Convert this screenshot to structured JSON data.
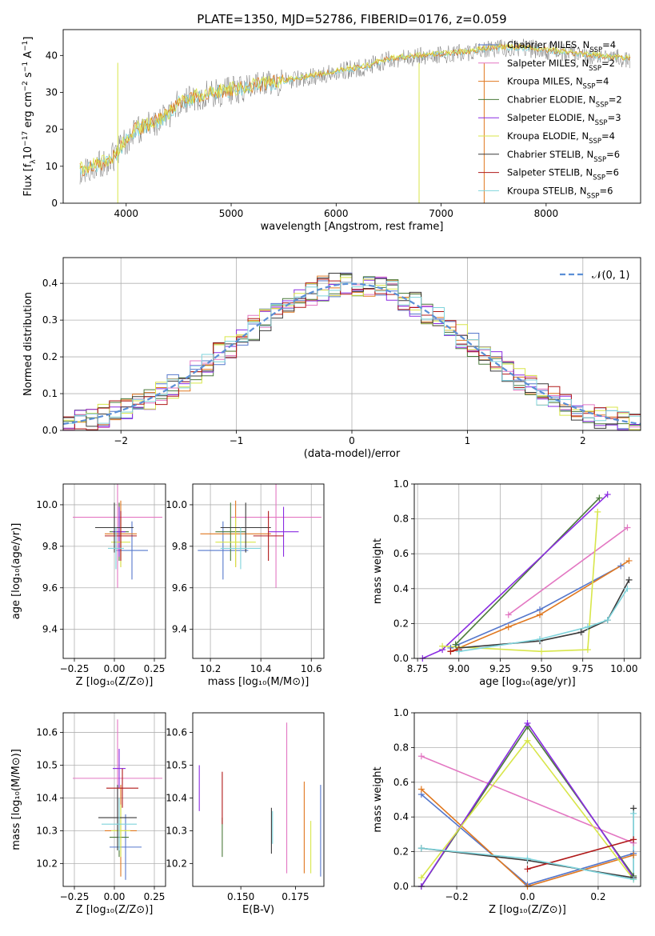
{
  "figure_title": "PLATE=1350, MJD=52786, FIBERID=0176, z=0.059",
  "colors": {
    "chabrier_miles": "#5577cc",
    "salpeter_miles": "#e377c2",
    "kroupa_miles": "#e07820",
    "chabrier_elodie": "#4a7a3a",
    "salpeter_elodie": "#8a2be2",
    "kroupa_elodie": "#d8e64a",
    "chabrier_stelib": "#3a3a3a",
    "salpeter_stelib": "#b01818",
    "kroupa_stelib": "#7fd4dc",
    "normal": "#5b8fd6"
  },
  "chart_data": [
    {
      "id": "spectrum",
      "type": "line",
      "title": "PLATE=1350, MJD=52786, FIBERID=0176, z=0.059",
      "xlabel": "wavelength [Angstrom, rest frame]",
      "ylabel_parts": [
        "Flux [f",
        "λ",
        "10",
        "−17",
        " erg cm",
        "−2",
        " s",
        "−1",
        " A",
        "−1",
        "]"
      ],
      "xlim": [
        3400,
        8900
      ],
      "ylim": [
        0,
        47
      ],
      "xticks": [
        4000,
        5000,
        6000,
        7000,
        8000
      ],
      "yticks": [
        0,
        10,
        20,
        30,
        40
      ],
      "grid": false,
      "legend": "right",
      "continuum_x": [
        3560,
        3700,
        3800,
        3900,
        4000,
        4100,
        4200,
        4300,
        4400,
        4500,
        4700,
        4900,
        5100,
        5300,
        5500,
        5700,
        5900,
        6100,
        6300,
        6500,
        6700,
        6900,
        7100,
        7300,
        7500,
        7800,
        8100,
        8400,
        8800
      ],
      "continuum_y": [
        9,
        10,
        11,
        13,
        17,
        20,
        21,
        22,
        24,
        27,
        29,
        30,
        31,
        32,
        33,
        34,
        35,
        36,
        37,
        39,
        39.5,
        40,
        40.5,
        41,
        42,
        42,
        41,
        40,
        39
      ],
      "series": [
        {
          "name": "Chabrier MILES, N",
          "sub": "SSP",
          "suffix": "=4",
          "color_key": "chabrier_miles"
        },
        {
          "name": "Salpeter MILES, N",
          "sub": "SSP",
          "suffix": "=2",
          "color_key": "salpeter_miles"
        },
        {
          "name": "Kroupa MILES, N",
          "sub": "SSP",
          "suffix": "=4",
          "color_key": "kroupa_miles"
        },
        {
          "name": "Chabrier ELODIE, N",
          "sub": "SSP",
          "suffix": "=2",
          "color_key": "chabrier_elodie"
        },
        {
          "name": "Salpeter ELODIE, N",
          "sub": "SSP",
          "suffix": "=3",
          "color_key": "salpeter_elodie"
        },
        {
          "name": "Kroupa ELODIE, N",
          "sub": "SSP",
          "suffix": "=4",
          "color_key": "kroupa_elodie"
        },
        {
          "name": "Chabrier STELIB, N",
          "sub": "SSP",
          "suffix": "=6",
          "color_key": "chabrier_stelib"
        },
        {
          "name": "Salpeter STELIB, N",
          "sub": "SSP",
          "suffix": "=6",
          "color_key": "salpeter_stelib"
        },
        {
          "name": "Kroupa STELIB, N",
          "sub": "SSP",
          "suffix": "=6",
          "color_key": "kroupa_stelib"
        }
      ]
    },
    {
      "id": "residuals",
      "type": "line",
      "xlabel": "(data-model)/error",
      "ylabel": "Normed distribution",
      "xlim": [
        -2.5,
        2.5
      ],
      "ylim": [
        0,
        0.47
      ],
      "xticks": [
        -2,
        -1,
        0,
        1,
        2
      ],
      "yticks": [
        0.0,
        0.1,
        0.2,
        0.3,
        0.4
      ],
      "grid": true,
      "legend": "top-right",
      "bin_width": 0.1,
      "normal_label": "𝒩(0, 1)"
    },
    {
      "id": "age_vs_Z",
      "type": "scatter",
      "xlabel": "Z [log₁₀(Z/Z⊙)]",
      "ylabel": "age  [log₁₀(age/yr)]",
      "xlim": [
        -0.32,
        0.32
      ],
      "ylim": [
        9.26,
        10.1
      ],
      "xticks": [
        -0.25,
        0.0,
        0.25
      ],
      "yticks": [
        9.4,
        9.6,
        9.8,
        10.0
      ],
      "grid": true,
      "points": [
        {
          "color_key": "chabrier_miles",
          "x": 0.11,
          "xerr": 0.1,
          "y": 9.78,
          "yerr": 0.14
        },
        {
          "color_key": "salpeter_miles",
          "x": 0.02,
          "xerr": 0.28,
          "y": 9.94,
          "yerr": 0.34
        },
        {
          "color_key": "kroupa_miles",
          "x": 0.04,
          "xerr": 0.1,
          "y": 9.86,
          "yerr": 0.16
        },
        {
          "color_key": "chabrier_elodie",
          "x": 0.03,
          "xerr": 0.06,
          "y": 9.87,
          "yerr": 0.14
        },
        {
          "color_key": "salpeter_elodie",
          "x": 0.03,
          "xerr": 0.04,
          "y": 9.87,
          "yerr": 0.12
        },
        {
          "color_key": "kroupa_elodie",
          "x": 0.04,
          "xerr": 0.06,
          "y": 9.82,
          "yerr": 0.12
        },
        {
          "color_key": "chabrier_stelib",
          "x": 0.0,
          "xerr": 0.12,
          "y": 9.89,
          "yerr": 0.12
        },
        {
          "color_key": "salpeter_stelib",
          "x": 0.04,
          "xerr": 0.1,
          "y": 9.85,
          "yerr": 0.12
        },
        {
          "color_key": "kroupa_stelib",
          "x": 0.01,
          "xerr": 0.05,
          "y": 9.79,
          "yerr": 0.1
        }
      ]
    },
    {
      "id": "age_vs_mass",
      "type": "scatter",
      "xlabel": "mass [log₁₀(M/M⊙)]",
      "xlim": [
        10.13,
        10.65
      ],
      "ylim": [
        9.26,
        10.1
      ],
      "xticks": [
        10.2,
        10.4,
        10.6
      ],
      "yticks": [
        9.4,
        9.6,
        9.8,
        10.0
      ],
      "grid": true,
      "points": [
        {
          "color_key": "chabrier_miles",
          "x": 10.25,
          "xerr": 0.1,
          "y": 9.78,
          "yerr": 0.14
        },
        {
          "color_key": "salpeter_miles",
          "x": 10.46,
          "xerr": 0.18,
          "y": 9.94,
          "yerr": 0.34
        },
        {
          "color_key": "kroupa_miles",
          "x": 10.3,
          "xerr": 0.14,
          "y": 9.86,
          "yerr": 0.16
        },
        {
          "color_key": "chabrier_elodie",
          "x": 10.28,
          "xerr": 0.06,
          "y": 9.87,
          "yerr": 0.14
        },
        {
          "color_key": "salpeter_elodie",
          "x": 10.49,
          "xerr": 0.06,
          "y": 9.87,
          "yerr": 0.12
        },
        {
          "color_key": "kroupa_elodie",
          "x": 10.3,
          "xerr": 0.08,
          "y": 9.82,
          "yerr": 0.12
        },
        {
          "color_key": "chabrier_stelib",
          "x": 10.34,
          "xerr": 0.1,
          "y": 9.89,
          "yerr": 0.12
        },
        {
          "color_key": "salpeter_stelib",
          "x": 10.43,
          "xerr": 0.06,
          "y": 9.85,
          "yerr": 0.12
        },
        {
          "color_key": "kroupa_stelib",
          "x": 10.32,
          "xerr": 0.08,
          "y": 9.79,
          "yerr": 0.1
        }
      ]
    },
    {
      "id": "massweight_vs_age",
      "type": "line",
      "xlabel": "age  [log₁₀(age/yr)]",
      "ylabel": "mass weight",
      "xlim": [
        8.73,
        10.1
      ],
      "ylim": [
        0,
        1.0
      ],
      "xticks": [
        8.75,
        9.0,
        9.25,
        9.5,
        9.75,
        10.0
      ],
      "yticks": [
        0.0,
        0.2,
        0.4,
        0.6,
        0.8,
        1.0
      ],
      "grid": true,
      "series": [
        {
          "color_key": "chabrier_miles",
          "x": [
            8.95,
            9.49,
            9.98
          ],
          "y": [
            0.06,
            0.28,
            0.53
          ]
        },
        {
          "color_key": "salpeter_miles",
          "x": [
            9.3,
            10.02
          ],
          "y": [
            0.25,
            0.75
          ]
        },
        {
          "color_key": "kroupa_miles",
          "x": [
            8.95,
            9.3,
            9.49,
            10.03
          ],
          "y": [
            0.04,
            0.18,
            0.25,
            0.56
          ]
        },
        {
          "color_key": "chabrier_elodie",
          "x": [
            8.98,
            9.85
          ],
          "y": [
            0.08,
            0.92
          ]
        },
        {
          "color_key": "salpeter_elodie",
          "x": [
            8.78,
            8.9,
            9.9
          ],
          "y": [
            0.0,
            0.05,
            0.94
          ]
        },
        {
          "color_key": "kroupa_elodie",
          "x": [
            8.9,
            9.5,
            9.78,
            9.84
          ],
          "y": [
            0.07,
            0.04,
            0.05,
            0.84
          ]
        },
        {
          "color_key": "chabrier_stelib",
          "x": [
            9.0,
            9.49,
            9.74,
            9.9,
            10.03
          ],
          "y": [
            0.06,
            0.1,
            0.15,
            0.22,
            0.45
          ]
        },
        {
          "color_key": "salpeter_stelib",
          "x": [
            8.95,
            9.0
          ],
          "y": [
            0.04,
            0.05
          ]
        },
        {
          "color_key": "kroupa_stelib",
          "x": [
            9.0,
            9.49,
            9.78,
            9.9,
            10.02
          ],
          "y": [
            0.04,
            0.11,
            0.18,
            0.22,
            0.4
          ]
        }
      ]
    },
    {
      "id": "mass_vs_Z",
      "type": "scatter",
      "xlabel": "Z [log₁₀(Z/Z⊙)]",
      "ylabel": "mass [log₁₀(M/M⊙)]",
      "xlim": [
        -0.32,
        0.32
      ],
      "ylim": [
        10.13,
        10.66
      ],
      "xticks": [
        -0.25,
        0.0,
        0.25
      ],
      "yticks": [
        10.2,
        10.3,
        10.4,
        10.5,
        10.6
      ],
      "grid": true,
      "points": [
        {
          "color_key": "chabrier_miles",
          "x": 0.07,
          "xerr": 0.1,
          "y": 10.25,
          "yerr": 0.1
        },
        {
          "color_key": "salpeter_miles",
          "x": 0.02,
          "xerr": 0.28,
          "y": 10.46,
          "yerr": 0.18
        },
        {
          "color_key": "kroupa_miles",
          "x": 0.04,
          "xerr": 0.1,
          "y": 10.3,
          "yerr": 0.14
        },
        {
          "color_key": "chabrier_elodie",
          "x": 0.03,
          "xerr": 0.06,
          "y": 10.28,
          "yerr": 0.06
        },
        {
          "color_key": "salpeter_elodie",
          "x": 0.03,
          "xerr": 0.04,
          "y": 10.49,
          "yerr": 0.06
        },
        {
          "color_key": "kroupa_elodie",
          "x": 0.04,
          "xerr": 0.06,
          "y": 10.3,
          "yerr": 0.08
        },
        {
          "color_key": "chabrier_stelib",
          "x": 0.02,
          "xerr": 0.12,
          "y": 10.34,
          "yerr": 0.1
        },
        {
          "color_key": "salpeter_stelib",
          "x": 0.05,
          "xerr": 0.1,
          "y": 10.43,
          "yerr": 0.06
        },
        {
          "color_key": "kroupa_stelib",
          "x": 0.03,
          "xerr": 0.11,
          "y": 10.32,
          "yerr": 0.08
        }
      ]
    },
    {
      "id": "mass_vs_ebv",
      "type": "scatter",
      "xlabel": "E(B-V)",
      "xlim": [
        0.128,
        0.188
      ],
      "ylim": [
        10.13,
        10.66
      ],
      "xticks": [
        0.15,
        0.175
      ],
      "xtick_labels": [
        "0.150",
        "0.175"
      ],
      "yticks": [
        10.2,
        10.3,
        10.4,
        10.5,
        10.6
      ],
      "grid": false,
      "points": [
        {
          "color_key": "salpeter_elodie",
          "x": 0.131,
          "y": 10.43,
          "yerr": 0.07
        },
        {
          "color_key": "chabrier_elodie",
          "x": 0.1415,
          "y": 10.28,
          "yerr": 0.06
        },
        {
          "color_key": "salpeter_stelib",
          "x": 0.1415,
          "y": 10.4,
          "yerr": 0.08
        },
        {
          "color_key": "chabrier_stelib",
          "x": 0.164,
          "y": 10.3,
          "yerr": 0.07
        },
        {
          "color_key": "kroupa_stelib",
          "x": 0.1645,
          "y": 10.31,
          "yerr": 0.05
        },
        {
          "color_key": "salpeter_miles",
          "x": 0.171,
          "y": 10.4,
          "yerr": 0.23
        },
        {
          "color_key": "kroupa_miles",
          "x": 0.179,
          "y": 10.31,
          "yerr": 0.14
        },
        {
          "color_key": "kroupa_elodie",
          "x": 0.182,
          "y": 10.25,
          "yerr": 0.08
        },
        {
          "color_key": "chabrier_miles",
          "x": 0.1865,
          "y": 10.3,
          "yerr": 0.14
        }
      ]
    },
    {
      "id": "massweight_vs_Z",
      "type": "line",
      "xlabel": "Z [log₁₀(Z/Z⊙)]",
      "ylabel": "mass weight",
      "xlim": [
        -0.32,
        0.32
      ],
      "ylim": [
        0,
        1.0
      ],
      "xticks": [
        -0.2,
        0.0,
        0.2
      ],
      "yticks": [
        0.0,
        0.2,
        0.4,
        0.6,
        0.8,
        1.0
      ],
      "grid": true,
      "series": [
        {
          "color_key": "chabrier_miles",
          "x": [
            -0.3,
            0.0,
            0.3
          ],
          "y": [
            0.53,
            0.01,
            0.19
          ]
        },
        {
          "color_key": "salpeter_miles",
          "x": [
            -0.3,
            0.3
          ],
          "y": [
            0.75,
            0.25
          ]
        },
        {
          "color_key": "kroupa_miles",
          "x": [
            -0.3,
            0.0,
            0.3
          ],
          "y": [
            0.56,
            0.0,
            0.18
          ]
        },
        {
          "color_key": "chabrier_elodie",
          "x": [
            -0.3,
            0.0,
            0.3
          ],
          "y": [
            0.0,
            0.92,
            0.06
          ]
        },
        {
          "color_key": "salpeter_elodie",
          "x": [
            -0.3,
            0.0,
            0.3
          ],
          "y": [
            0.0,
            0.94,
            0.05
          ]
        },
        {
          "color_key": "kroupa_elodie",
          "x": [
            -0.3,
            0.0,
            0.3
          ],
          "y": [
            0.05,
            0.84,
            0.04
          ]
        },
        {
          "color_key": "chabrier_stelib",
          "x": [
            -0.3,
            0.0,
            0.3,
            0.3
          ],
          "y": [
            0.22,
            0.15,
            0.05,
            0.45
          ]
        },
        {
          "color_key": "salpeter_stelib",
          "x": [
            0.0,
            0.3
          ],
          "y": [
            0.1,
            0.27
          ]
        },
        {
          "color_key": "kroupa_stelib",
          "x": [
            -0.3,
            0.0,
            0.3,
            0.3
          ],
          "y": [
            0.22,
            0.16,
            0.04,
            0.42
          ]
        }
      ]
    }
  ]
}
